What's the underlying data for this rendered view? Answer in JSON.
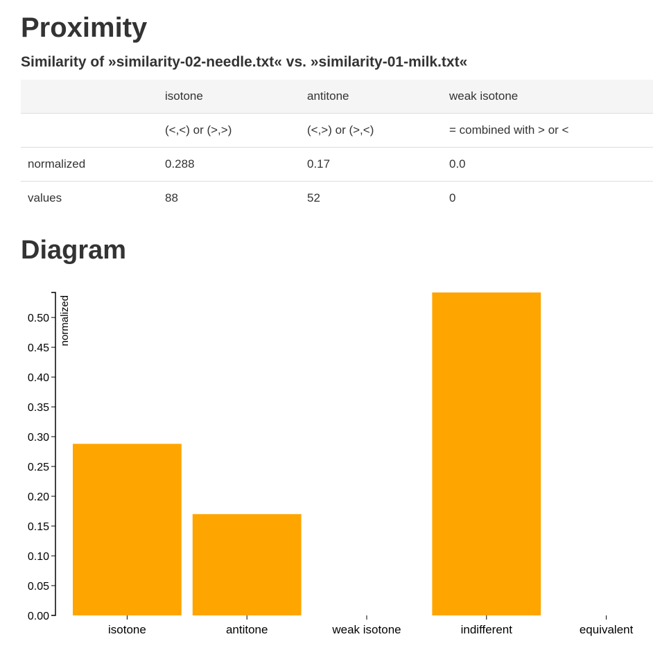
{
  "page": {
    "title": "Proximity",
    "subtitle": "Similarity of »similarity-02-needle.txt« vs. »similarity-01-milk.txt«",
    "diagram_title": "Diagram"
  },
  "table": {
    "header": [
      "",
      "isotone",
      "antitone",
      "weak isotone"
    ],
    "relation": [
      "",
      "(<,<) or (>,>)",
      "(<,>) or (>,<)",
      "= combined with > or <"
    ],
    "normalized": [
      "normalized",
      "0.288",
      "0.17",
      "0.0"
    ],
    "values": [
      "values",
      "88",
      "52",
      "0"
    ]
  },
  "colors": {
    "bar": "#ffa500",
    "axis": "#000000",
    "header_bg": "#f5f5f5"
  },
  "chart_data": {
    "type": "bar",
    "categories": [
      "isotone",
      "antitone",
      "weak isotone",
      "indifferent",
      "equivalent"
    ],
    "values": [
      0.288,
      0.17,
      0.0,
      0.542,
      0.0
    ],
    "ylabel": "normalized",
    "xlabel": "",
    "ylim": [
      0,
      0.542
    ],
    "yticks": [
      "0.00",
      "0.05",
      "0.10",
      "0.15",
      "0.20",
      "0.25",
      "0.30",
      "0.35",
      "0.40",
      "0.45",
      "0.50"
    ],
    "grid": false,
    "legend": "none"
  }
}
